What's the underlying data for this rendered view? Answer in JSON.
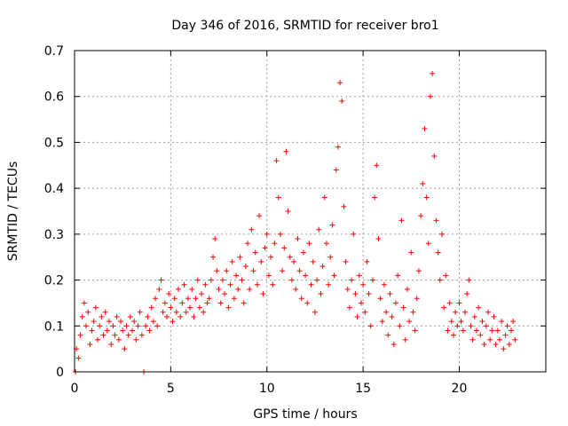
{
  "chart_data": {
    "type": "scatter",
    "title": "Day 346 of 2016, SRMTID for receiver bro1",
    "xlabel": "GPS time / hours",
    "ylabel": "SRMTID / TECUs",
    "xlim": [
      0,
      24.5
    ],
    "ylim": [
      0,
      0.7
    ],
    "xticks": [
      0,
      5,
      10,
      15,
      20
    ],
    "xtick_labels": [
      "0",
      "5",
      "10",
      "15",
      "20"
    ],
    "yticks": [
      0,
      0.1,
      0.2,
      0.3,
      0.4,
      0.5,
      0.6,
      0.7
    ],
    "ytick_labels": [
      "0",
      "0.1",
      "0.2",
      "0.3",
      "0.4",
      "0.5",
      "0.6",
      "0.7"
    ],
    "grid": true,
    "marker": "+",
    "color": "#ff0000",
    "series": [
      {
        "name": "bro1",
        "points": [
          [
            0.05,
            0.0
          ],
          [
            0.1,
            0.05
          ],
          [
            0.2,
            0.03
          ],
          [
            0.3,
            0.08
          ],
          [
            0.4,
            0.12
          ],
          [
            0.5,
            0.15
          ],
          [
            0.6,
            0.1
          ],
          [
            0.7,
            0.13
          ],
          [
            0.8,
            0.06
          ],
          [
            0.9,
            0.09
          ],
          [
            1.0,
            0.11
          ],
          [
            1.1,
            0.14
          ],
          [
            1.2,
            0.07
          ],
          [
            1.3,
            0.1
          ],
          [
            1.4,
            0.12
          ],
          [
            1.5,
            0.08
          ],
          [
            1.6,
            0.13
          ],
          [
            1.7,
            0.09
          ],
          [
            1.8,
            0.11
          ],
          [
            1.9,
            0.06
          ],
          [
            2.0,
            0.1
          ],
          [
            2.1,
            0.08
          ],
          [
            2.2,
            0.12
          ],
          [
            2.3,
            0.07
          ],
          [
            2.4,
            0.11
          ],
          [
            2.5,
            0.09
          ],
          [
            2.6,
            0.05
          ],
          [
            2.7,
            0.1
          ],
          [
            2.8,
            0.08
          ],
          [
            2.9,
            0.12
          ],
          [
            3.0,
            0.09
          ],
          [
            3.1,
            0.11
          ],
          [
            3.2,
            0.07
          ],
          [
            3.3,
            0.1
          ],
          [
            3.4,
            0.13
          ],
          [
            3.5,
            0.08
          ],
          [
            3.6,
            0.0
          ],
          [
            3.7,
            0.1
          ],
          [
            3.8,
            0.12
          ],
          [
            3.9,
            0.09
          ],
          [
            4.0,
            0.14
          ],
          [
            4.1,
            0.11
          ],
          [
            4.2,
            0.16
          ],
          [
            4.3,
            0.1
          ],
          [
            4.4,
            0.18
          ],
          [
            4.5,
            0.2
          ],
          [
            4.6,
            0.13
          ],
          [
            4.7,
            0.15
          ],
          [
            4.8,
            0.12
          ],
          [
            4.9,
            0.17
          ],
          [
            5.0,
            0.14
          ],
          [
            5.1,
            0.11
          ],
          [
            5.2,
            0.16
          ],
          [
            5.3,
            0.13
          ],
          [
            5.4,
            0.18
          ],
          [
            5.5,
            0.12
          ],
          [
            5.6,
            0.15
          ],
          [
            5.7,
            0.19
          ],
          [
            5.8,
            0.13
          ],
          [
            5.9,
            0.16
          ],
          [
            6.0,
            0.14
          ],
          [
            6.1,
            0.18
          ],
          [
            6.2,
            0.12
          ],
          [
            6.3,
            0.16
          ],
          [
            6.4,
            0.2
          ],
          [
            6.5,
            0.14
          ],
          [
            6.6,
            0.17
          ],
          [
            6.7,
            0.13
          ],
          [
            6.8,
            0.19
          ],
          [
            6.9,
            0.15
          ],
          [
            7.0,
            0.16
          ],
          [
            7.1,
            0.2
          ],
          [
            7.2,
            0.25
          ],
          [
            7.3,
            0.29
          ],
          [
            7.4,
            0.22
          ],
          [
            7.5,
            0.18
          ],
          [
            7.6,
            0.15
          ],
          [
            7.7,
            0.2
          ],
          [
            7.8,
            0.17
          ],
          [
            7.9,
            0.22
          ],
          [
            8.0,
            0.14
          ],
          [
            8.1,
            0.19
          ],
          [
            8.2,
            0.24
          ],
          [
            8.3,
            0.16
          ],
          [
            8.4,
            0.21
          ],
          [
            8.5,
            0.18
          ],
          [
            8.6,
            0.25
          ],
          [
            8.7,
            0.2
          ],
          [
            8.8,
            0.15
          ],
          [
            8.9,
            0.23
          ],
          [
            9.0,
            0.28
          ],
          [
            9.1,
            0.18
          ],
          [
            9.2,
            0.31
          ],
          [
            9.3,
            0.22
          ],
          [
            9.4,
            0.26
          ],
          [
            9.5,
            0.19
          ],
          [
            9.6,
            0.34
          ],
          [
            9.7,
            0.24
          ],
          [
            9.8,
            0.17
          ],
          [
            9.9,
            0.27
          ],
          [
            10.0,
            0.3
          ],
          [
            10.1,
            0.21
          ],
          [
            10.2,
            0.25
          ],
          [
            10.3,
            0.19
          ],
          [
            10.4,
            0.28
          ],
          [
            10.5,
            0.46
          ],
          [
            10.6,
            0.38
          ],
          [
            10.7,
            0.3
          ],
          [
            10.8,
            0.22
          ],
          [
            10.9,
            0.27
          ],
          [
            11.0,
            0.48
          ],
          [
            11.1,
            0.35
          ],
          [
            11.2,
            0.25
          ],
          [
            11.3,
            0.2
          ],
          [
            11.4,
            0.24
          ],
          [
            11.5,
            0.18
          ],
          [
            11.6,
            0.29
          ],
          [
            11.7,
            0.22
          ],
          [
            11.8,
            0.16
          ],
          [
            11.9,
            0.26
          ],
          [
            12.0,
            0.21
          ],
          [
            12.1,
            0.15
          ],
          [
            12.2,
            0.28
          ],
          [
            12.3,
            0.19
          ],
          [
            12.4,
            0.24
          ],
          [
            12.5,
            0.13
          ],
          [
            12.6,
            0.2
          ],
          [
            12.7,
            0.31
          ],
          [
            12.8,
            0.17
          ],
          [
            12.9,
            0.23
          ],
          [
            13.0,
            0.38
          ],
          [
            13.1,
            0.28
          ],
          [
            13.2,
            0.19
          ],
          [
            13.3,
            0.25
          ],
          [
            13.4,
            0.32
          ],
          [
            13.5,
            0.21
          ],
          [
            13.6,
            0.44
          ],
          [
            13.7,
            0.49
          ],
          [
            13.8,
            0.63
          ],
          [
            13.9,
            0.59
          ],
          [
            14.0,
            0.36
          ],
          [
            14.1,
            0.24
          ],
          [
            14.2,
            0.18
          ],
          [
            14.3,
            0.14
          ],
          [
            14.4,
            0.2
          ],
          [
            14.5,
            0.3
          ],
          [
            14.6,
            0.17
          ],
          [
            14.7,
            0.12
          ],
          [
            14.8,
            0.21
          ],
          [
            14.9,
            0.15
          ],
          [
            15.0,
            0.19
          ],
          [
            15.1,
            0.13
          ],
          [
            15.2,
            0.24
          ],
          [
            15.3,
            0.17
          ],
          [
            15.4,
            0.1
          ],
          [
            15.5,
            0.2
          ],
          [
            15.6,
            0.38
          ],
          [
            15.7,
            0.45
          ],
          [
            15.8,
            0.29
          ],
          [
            15.9,
            0.16
          ],
          [
            16.0,
            0.11
          ],
          [
            16.1,
            0.19
          ],
          [
            16.2,
            0.13
          ],
          [
            16.3,
            0.08
          ],
          [
            16.4,
            0.17
          ],
          [
            16.5,
            0.12
          ],
          [
            16.6,
            0.06
          ],
          [
            16.7,
            0.15
          ],
          [
            16.8,
            0.21
          ],
          [
            16.9,
            0.1
          ],
          [
            17.0,
            0.33
          ],
          [
            17.1,
            0.14
          ],
          [
            17.2,
            0.07
          ],
          [
            17.3,
            0.18
          ],
          [
            17.4,
            0.11
          ],
          [
            17.5,
            0.26
          ],
          [
            17.6,
            0.13
          ],
          [
            17.7,
            0.09
          ],
          [
            17.8,
            0.16
          ],
          [
            17.9,
            0.22
          ],
          [
            18.0,
            0.34
          ],
          [
            18.1,
            0.41
          ],
          [
            18.2,
            0.53
          ],
          [
            18.3,
            0.38
          ],
          [
            18.4,
            0.28
          ],
          [
            18.5,
            0.6
          ],
          [
            18.6,
            0.65
          ],
          [
            18.7,
            0.47
          ],
          [
            18.8,
            0.33
          ],
          [
            18.9,
            0.26
          ],
          [
            19.0,
            0.2
          ],
          [
            19.1,
            0.3
          ],
          [
            19.2,
            0.14
          ],
          [
            19.3,
            0.21
          ],
          [
            19.4,
            0.09
          ],
          [
            19.5,
            0.15
          ],
          [
            19.6,
            0.11
          ],
          [
            19.7,
            0.08
          ],
          [
            19.8,
            0.13
          ],
          [
            19.9,
            0.1
          ],
          [
            20.0,
            0.15
          ],
          [
            20.1,
            0.11
          ],
          [
            20.2,
            0.09
          ],
          [
            20.3,
            0.13
          ],
          [
            20.4,
            0.17
          ],
          [
            20.5,
            0.2
          ],
          [
            20.6,
            0.1
          ],
          [
            20.7,
            0.07
          ],
          [
            20.8,
            0.12
          ],
          [
            20.9,
            0.09
          ],
          [
            21.0,
            0.14
          ],
          [
            21.1,
            0.08
          ],
          [
            21.2,
            0.11
          ],
          [
            21.3,
            0.06
          ],
          [
            21.4,
            0.1
          ],
          [
            21.5,
            0.13
          ],
          [
            21.6,
            0.07
          ],
          [
            21.7,
            0.09
          ],
          [
            21.8,
            0.12
          ],
          [
            21.9,
            0.06
          ],
          [
            22.0,
            0.09
          ],
          [
            22.1,
            0.07
          ],
          [
            22.2,
            0.11
          ],
          [
            22.3,
            0.05
          ],
          [
            22.4,
            0.08
          ],
          [
            22.5,
            0.1
          ],
          [
            22.6,
            0.06
          ],
          [
            22.7,
            0.09
          ],
          [
            22.8,
            0.11
          ],
          [
            22.9,
            0.07
          ]
        ]
      }
    ]
  }
}
